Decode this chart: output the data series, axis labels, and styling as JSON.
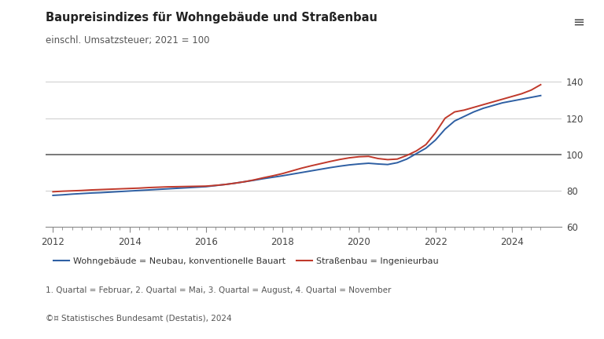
{
  "title": "Baupreisindizes für Wohngebäude und Straßenbau",
  "subtitle": "einschl. Umsatzsteuer; 2021 = 100",
  "footer1": "1. Quartal = Februar, 2. Quartal = Mai, 3. Quartal = August, 4. Quartal = November",
  "footer2": "©¤ Statistisches Bundesamt (Destatis), 2024",
  "menu_icon": "≡",
  "legend1": "Wohngebäude = Neubau, konventionelle Bauart",
  "legend2": "Straßenbau = Ingenieurbau",
  "color1": "#2e5fa3",
  "color2": "#c0392b",
  "bg_color": "#ffffff",
  "grid_color": "#cccccc",
  "line100_color": "#555555",
  "ylim": [
    60,
    145
  ],
  "yticks": [
    60,
    80,
    100,
    120,
    140
  ],
  "xlim": [
    2011.8,
    2025.3
  ],
  "wohngebaeude_x": [
    2012.0,
    2012.25,
    2012.5,
    2012.75,
    2013.0,
    2013.25,
    2013.5,
    2013.75,
    2014.0,
    2014.25,
    2014.5,
    2014.75,
    2015.0,
    2015.25,
    2015.5,
    2015.75,
    2016.0,
    2016.25,
    2016.5,
    2016.75,
    2017.0,
    2017.25,
    2017.5,
    2017.75,
    2018.0,
    2018.25,
    2018.5,
    2018.75,
    2019.0,
    2019.25,
    2019.5,
    2019.75,
    2020.0,
    2020.25,
    2020.5,
    2020.75,
    2021.0,
    2021.25,
    2021.5,
    2021.75,
    2022.0,
    2022.25,
    2022.5,
    2022.75,
    2023.0,
    2023.25,
    2023.5,
    2023.75,
    2024.0,
    2024.25,
    2024.5,
    2024.75
  ],
  "wohngebaeude_y": [
    77.5,
    77.8,
    78.2,
    78.5,
    78.8,
    79.0,
    79.3,
    79.6,
    79.9,
    80.2,
    80.5,
    80.8,
    81.1,
    81.4,
    81.7,
    82.0,
    82.3,
    82.9,
    83.5,
    84.2,
    85.0,
    85.8,
    86.7,
    87.5,
    88.3,
    89.2,
    90.1,
    91.0,
    91.9,
    92.8,
    93.6,
    94.3,
    94.8,
    95.2,
    94.8,
    94.5,
    95.5,
    97.5,
    100.5,
    103.5,
    108.0,
    114.0,
    118.5,
    121.0,
    123.5,
    125.5,
    127.0,
    128.5,
    129.5,
    130.5,
    131.5,
    132.5
  ],
  "strassenbau_x": [
    2012.0,
    2012.25,
    2012.5,
    2012.75,
    2013.0,
    2013.25,
    2013.5,
    2013.75,
    2014.0,
    2014.25,
    2014.5,
    2014.75,
    2015.0,
    2015.25,
    2015.5,
    2015.75,
    2016.0,
    2016.25,
    2016.5,
    2016.75,
    2017.0,
    2017.25,
    2017.5,
    2017.75,
    2018.0,
    2018.25,
    2018.5,
    2018.75,
    2019.0,
    2019.25,
    2019.5,
    2019.75,
    2020.0,
    2020.25,
    2020.5,
    2020.75,
    2021.0,
    2021.25,
    2021.5,
    2021.75,
    2022.0,
    2022.25,
    2022.5,
    2022.75,
    2023.0,
    2023.25,
    2023.5,
    2023.75,
    2024.0,
    2024.25,
    2024.5,
    2024.75
  ],
  "strassenbau_y": [
    79.5,
    79.8,
    80.0,
    80.2,
    80.5,
    80.7,
    80.9,
    81.1,
    81.3,
    81.5,
    81.8,
    82.0,
    82.2,
    82.3,
    82.4,
    82.5,
    82.6,
    83.0,
    83.5,
    84.2,
    85.0,
    86.0,
    87.2,
    88.3,
    89.5,
    91.0,
    92.5,
    93.8,
    95.0,
    96.2,
    97.3,
    98.2,
    98.8,
    99.0,
    97.8,
    97.2,
    97.5,
    99.5,
    102.0,
    105.5,
    112.0,
    120.0,
    123.5,
    124.5,
    126.0,
    127.5,
    129.0,
    130.5,
    132.0,
    133.5,
    135.5,
    138.5
  ]
}
